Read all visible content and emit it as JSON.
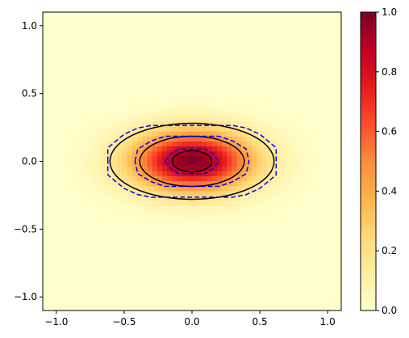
{
  "chart_data": {
    "type": "heatmap",
    "title": "",
    "xlabel": "",
    "ylabel": "",
    "xlim": [
      -1.1,
      1.1
    ],
    "ylim": [
      -1.1,
      1.1
    ],
    "grid": false,
    "colormap": "YlOrRd",
    "colorbar": {
      "min": 0.0,
      "max": 1.0,
      "ticks": [
        "0.0",
        "0.2",
        "0.4",
        "0.6",
        "0.8",
        "1.0"
      ]
    },
    "x_ticks": [
      "−1.0",
      "−0.5",
      "0.0",
      "0.5",
      "1.0"
    ],
    "x_tick_values": [
      -1.0,
      -0.5,
      0.0,
      0.5,
      1.0
    ],
    "y_ticks": [
      "−1.0",
      "−0.5",
      "0.0",
      "0.5",
      "1.0"
    ],
    "y_tick_values": [
      -1.0,
      -0.5,
      0.0,
      0.5,
      1.0
    ],
    "field": {
      "function": "gaussian",
      "center": [
        0.0,
        0.0
      ],
      "sigma_x": 0.31,
      "sigma_y": 0.155,
      "peak": 1.0
    },
    "contours_solid": {
      "color": "#000000",
      "ellipses": [
        {
          "rx": 0.145,
          "ry": 0.078
        },
        {
          "rx": 0.385,
          "ry": 0.185
        },
        {
          "rx": 0.605,
          "ry": 0.28
        }
      ]
    },
    "contours_dashed": {
      "color": "#0000ff",
      "polygons": [
        [
          [
            -0.2,
            0.0
          ],
          [
            -0.15,
            0.06
          ],
          [
            -0.1,
            0.09
          ],
          [
            0.1,
            0.09
          ],
          [
            0.15,
            0.06
          ],
          [
            0.2,
            0.0
          ],
          [
            0.15,
            -0.06
          ],
          [
            0.1,
            -0.09
          ],
          [
            -0.1,
            -0.09
          ],
          [
            -0.15,
            -0.06
          ]
        ],
        [
          [
            -0.42,
            0.0
          ],
          [
            -0.4,
            0.09
          ],
          [
            -0.3,
            0.15
          ],
          [
            -0.2,
            0.185
          ],
          [
            0.2,
            0.185
          ],
          [
            0.3,
            0.15
          ],
          [
            0.4,
            0.09
          ],
          [
            0.42,
            0.0
          ],
          [
            0.4,
            -0.09
          ],
          [
            0.3,
            -0.15
          ],
          [
            0.2,
            -0.185
          ],
          [
            -0.2,
            -0.185
          ],
          [
            -0.3,
            -0.15
          ],
          [
            -0.4,
            -0.09
          ]
        ],
        [
          [
            -0.62,
            0.0
          ],
          [
            -0.62,
            0.1
          ],
          [
            -0.5,
            0.2
          ],
          [
            -0.4,
            0.245
          ],
          [
            -0.3,
            0.265
          ],
          [
            0.3,
            0.265
          ],
          [
            0.4,
            0.245
          ],
          [
            0.5,
            0.2
          ],
          [
            0.62,
            0.1
          ],
          [
            0.62,
            0.0
          ],
          [
            0.62,
            -0.1
          ],
          [
            0.5,
            -0.2
          ],
          [
            0.4,
            -0.245
          ],
          [
            0.3,
            -0.265
          ],
          [
            -0.3,
            -0.265
          ],
          [
            -0.4,
            -0.245
          ],
          [
            -0.5,
            -0.2
          ],
          [
            -0.62,
            -0.1
          ]
        ]
      ]
    }
  }
}
